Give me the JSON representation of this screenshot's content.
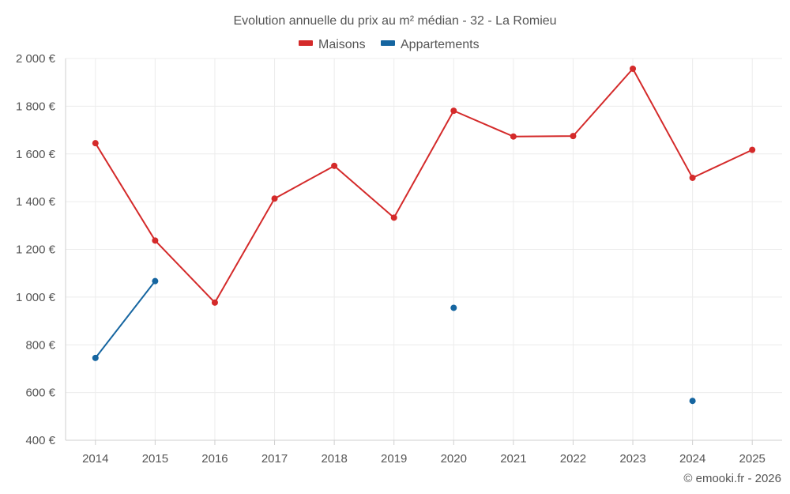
{
  "chart_data": {
    "type": "line",
    "title": "Evolution annuelle du prix au m² médian - 32 - La Romieu",
    "categories": [
      "2014",
      "2015",
      "2016",
      "2017",
      "2018",
      "2019",
      "2020",
      "2021",
      "2022",
      "2023",
      "2024",
      "2025"
    ],
    "ylim": [
      400,
      2000
    ],
    "yticks": [
      400,
      600,
      800,
      1000,
      1200,
      1400,
      1600,
      1800,
      2000
    ],
    "ytick_labels": [
      "400 €",
      "600 €",
      "800 €",
      "1 000 €",
      "1 200 €",
      "1 400 €",
      "1 600 €",
      "1 800 €",
      "2 000 €"
    ],
    "grid": true,
    "legend_position": "top-center",
    "series": [
      {
        "name": "Maisons",
        "color": "#d42a2a",
        "values": [
          1645,
          1237,
          977,
          1413,
          1550,
          1333,
          1781,
          1673,
          1675,
          1957,
          1500,
          1617
        ]
      },
      {
        "name": "Appartements",
        "color": "#1565a0",
        "values": [
          745,
          1067,
          null,
          null,
          null,
          null,
          955,
          null,
          null,
          null,
          565,
          null
        ]
      }
    ]
  },
  "credit": "© emooki.fr - 2026"
}
